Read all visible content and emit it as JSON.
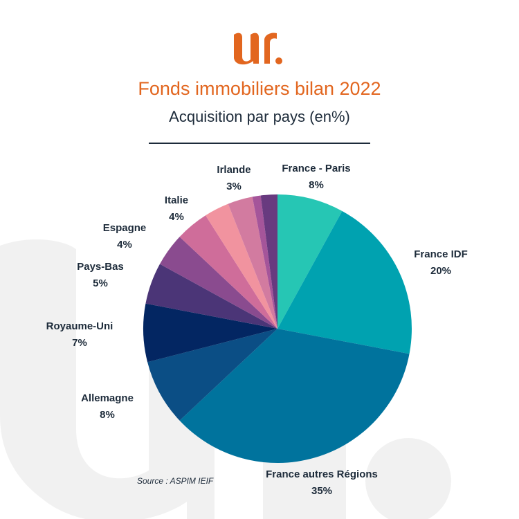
{
  "header": {
    "title": "Fonds immobiliers bilan 2022",
    "subtitle": "Acquisition par pays (en%)"
  },
  "colors": {
    "accent": "#e2661f",
    "text": "#1d2b3a",
    "watermark": "#f1f1f1"
  },
  "source": "Source : ASPIM IEIF",
  "chart_data": {
    "type": "pie",
    "title": "Acquisition par pays (en%)",
    "start_angle_deg": 0,
    "direction": "clockwise",
    "slices": [
      {
        "label": "France - Paris",
        "value": 8,
        "value_label": "8%",
        "color": "#26c6b4"
      },
      {
        "label": "France IDF",
        "value": 20,
        "value_label": "20%",
        "color": "#00a2b0"
      },
      {
        "label": "France autres Régions",
        "value": 35,
        "value_label": "35%",
        "color": "#00739d"
      },
      {
        "label": "Allemagne",
        "value": 8,
        "value_label": "8%",
        "color": "#0b4e85"
      },
      {
        "label": "Royaume-Uni",
        "value": 7,
        "value_label": "7%",
        "color": "#032662"
      },
      {
        "label": "Pays-Bas",
        "value": 5,
        "value_label": "5%",
        "color": "#4b3577"
      },
      {
        "label": "Espagne",
        "value": 4,
        "value_label": "4%",
        "color": "#8a4b8f"
      },
      {
        "label": "Italie",
        "value": 4,
        "value_label": "4%",
        "color": "#cf6d9a"
      },
      {
        "label": "Irlande",
        "value": 3,
        "value_label": "3%",
        "color": "#f1939f"
      },
      {
        "label": "",
        "value": 3,
        "value_label": "",
        "color": "#d27ba0"
      },
      {
        "label": "",
        "value": 1,
        "value_label": "",
        "color": "#a5559a"
      },
      {
        "label": "",
        "value": 2,
        "value_label": "",
        "color": "#683a7f"
      }
    ]
  }
}
